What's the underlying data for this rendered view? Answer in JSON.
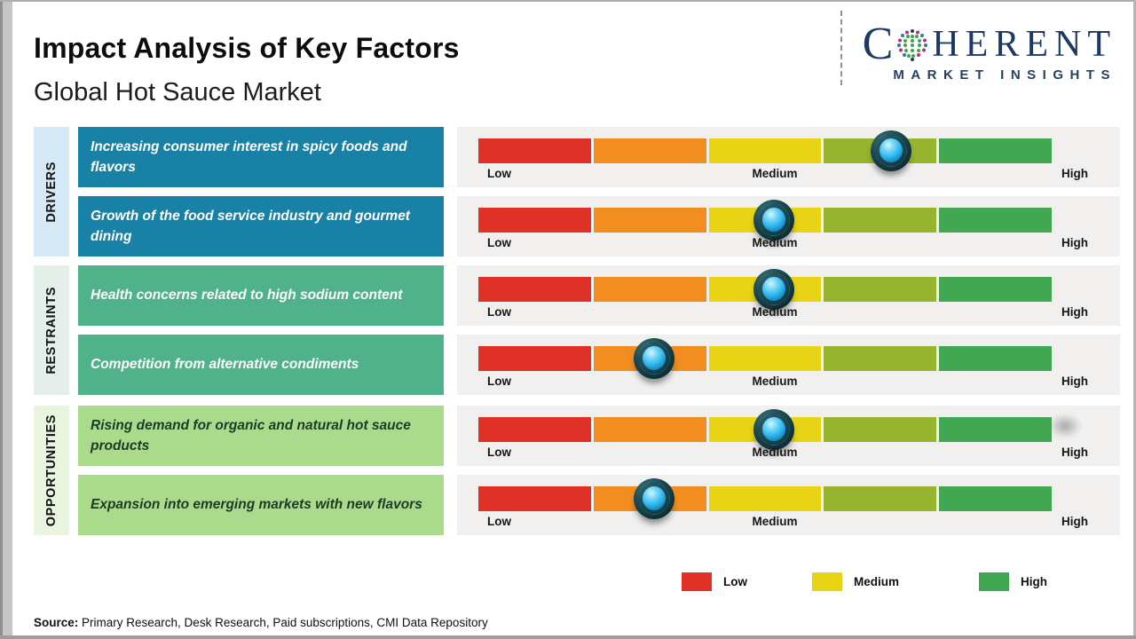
{
  "page": {
    "title": "Impact Analysis of Key Factors",
    "subtitle": "Global Hot Sauce Market"
  },
  "logo": {
    "c": "C",
    "rest": "HERENT",
    "tagline": "MARKET INSIGHTS"
  },
  "groups": [
    {
      "label": "DRIVERS"
    },
    {
      "label": "RESTRAINTS"
    },
    {
      "label": "OPPORTUNITIES"
    }
  ],
  "factors": [
    {
      "group": "DRIVERS",
      "text": "Increasing consumer interest in spicy foods and flavors",
      "pct": 72
    },
    {
      "group": "DRIVERS",
      "text": "Growth of the food service industry and gourmet dining",
      "pct": 51.5
    },
    {
      "group": "RESTRAINTS",
      "text": "Health concerns related to high sodium content",
      "pct": 51.5
    },
    {
      "group": "RESTRAINTS",
      "text": "Competition from alternative condiments",
      "pct": 30.7
    },
    {
      "group": "OPPORTUNITIES",
      "text": "Rising demand for organic and natural hot sauce products",
      "pct": 51.5
    },
    {
      "group": "OPPORTUNITIES",
      "text": "Expansion into emerging markets with new flavors",
      "pct": 30.7
    }
  ],
  "scale_labels": {
    "low": "Low",
    "medium": "Medium",
    "high": "High"
  },
  "legend": [
    {
      "label": "Low"
    },
    {
      "label": "Medium"
    },
    {
      "label": "High"
    }
  ],
  "colors": {
    "segments": [
      "#e03128",
      "#f28d1f",
      "#e8d414",
      "#96b42d",
      "#41a750"
    ],
    "legend": [
      "#e03128",
      "#e8d414",
      "#41a750"
    ],
    "driver_band": "#d5eaf6",
    "restraint_band": "#e3efe8",
    "opportunity_band": "#e9f5df",
    "driver_box": "#1980a6",
    "restraint_box": "#50b28a",
    "opportunity_box": "#aada8c",
    "marker_core": "#29b2ea",
    "logo_navy": "#1e3a63"
  },
  "source": {
    "label": "Source:",
    "text": "Primary Research, Desk Research, Paid subscriptions, CMI Data Repository"
  },
  "chart_data": {
    "type": "bar",
    "title": "Impact Analysis of Key Factors",
    "subtitle": "Global Hot Sauce Market",
    "scale": [
      "Low",
      "Medium",
      "High"
    ],
    "legend": [
      "Low",
      "Medium",
      "High"
    ],
    "groups": [
      "DRIVERS",
      "DRIVERS",
      "RESTRAINTS",
      "RESTRAINTS",
      "OPPORTUNITIES",
      "OPPORTUNITIES"
    ],
    "categories": [
      "Increasing consumer interest in spicy foods and flavors",
      "Growth of the food service industry and gourmet dining",
      "Health concerns related to high sodium content",
      "Competition from alternative condiments",
      "Rising demand for organic and natural hot sauce products",
      "Expansion into emerging markets with new flavors"
    ],
    "values_pct_of_scale": [
      72,
      51.5,
      51.5,
      30.7,
      51.5,
      30.7
    ],
    "impact_levels": [
      "Medium-High",
      "Medium",
      "Medium",
      "Low-Medium",
      "Medium",
      "Low-Medium"
    ],
    "source": "Primary Research, Desk Research, Paid subscriptions, CMI Data Repository"
  }
}
